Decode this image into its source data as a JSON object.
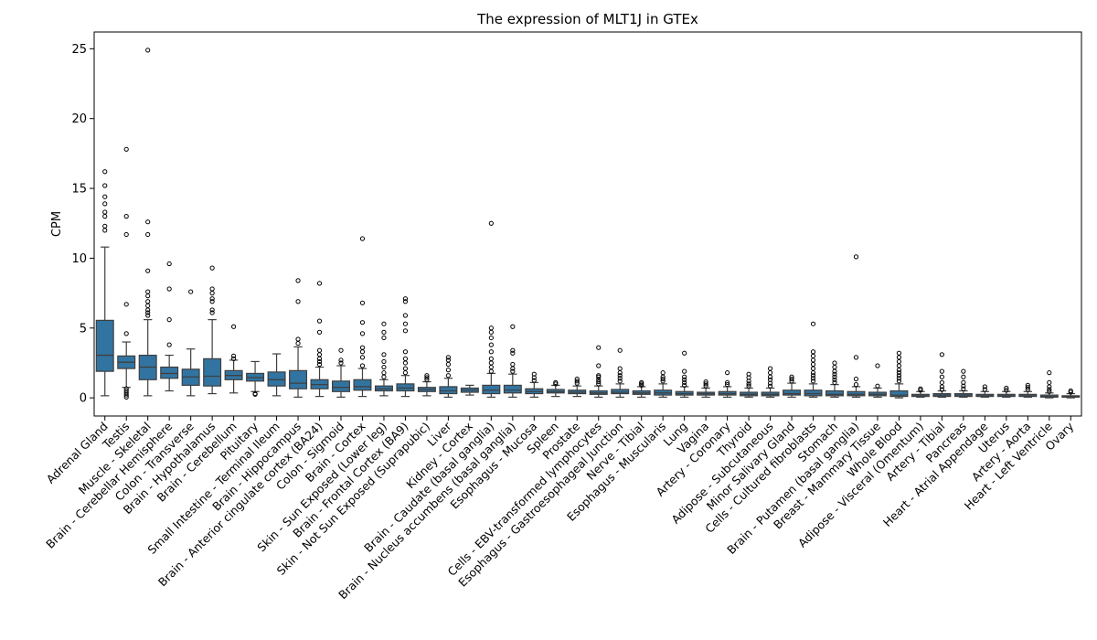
{
  "chart_data": {
    "type": "box",
    "title": "The expression of MLT1J in GTEx",
    "xlabel": "",
    "ylabel": "CPM",
    "ylim": [
      -1.3,
      26.2
    ],
    "yticks": [
      0,
      5,
      10,
      15,
      20,
      25
    ],
    "color": "#3274a1",
    "series": [
      {
        "category": "Adrenal Gland",
        "whisker_low": 0.15,
        "q1": 1.9,
        "median": 3.05,
        "q3": 5.55,
        "whisker_high": 10.8,
        "outliers": [
          12.0,
          12.3,
          13.0,
          13.3,
          13.9,
          14.4,
          15.2,
          16.2
        ]
      },
      {
        "category": "Testis",
        "whisker_low": 0.75,
        "q1": 2.1,
        "median": 2.55,
        "q3": 3.0,
        "whisker_high": 4.0,
        "outliers": [
          0.05,
          0.2,
          0.35,
          0.5,
          0.65,
          4.6,
          6.7,
          11.7,
          13.0,
          17.8
        ]
      },
      {
        "category": "Muscle - Skeletal",
        "whisker_low": 0.15,
        "q1": 1.3,
        "median": 2.2,
        "q3": 3.05,
        "whisker_high": 5.6,
        "outliers": [
          5.9,
          6.1,
          6.3,
          6.6,
          6.9,
          7.3,
          7.6,
          9.1,
          11.7,
          12.6,
          24.9
        ]
      },
      {
        "category": "Brain - Cerebellar Hemisphere",
        "whisker_low": 0.5,
        "q1": 1.4,
        "median": 1.75,
        "q3": 2.2,
        "whisker_high": 3.05,
        "outliers": [
          3.8,
          5.6,
          7.8,
          9.6
        ]
      },
      {
        "category": "Colon - Transverse",
        "whisker_low": 0.15,
        "q1": 0.9,
        "median": 1.5,
        "q3": 2.05,
        "whisker_high": 3.5,
        "outliers": [
          7.6
        ]
      },
      {
        "category": "Brain - Hypothalamus",
        "whisker_low": 0.3,
        "q1": 0.85,
        "median": 1.55,
        "q3": 2.8,
        "whisker_high": 5.6,
        "outliers": [
          6.1,
          6.3,
          6.9,
          7.1,
          7.5,
          7.8,
          9.3
        ]
      },
      {
        "category": "Brain - Cerebellum",
        "whisker_low": 0.35,
        "q1": 1.3,
        "median": 1.6,
        "q3": 1.95,
        "whisker_high": 2.7,
        "outliers": [
          2.8,
          3.0,
          5.1
        ]
      },
      {
        "category": "Pituitary",
        "whisker_low": 0.45,
        "q1": 1.2,
        "median": 1.45,
        "q3": 1.75,
        "whisker_high": 2.6,
        "outliers": [
          0.25,
          0.3
        ]
      },
      {
        "category": "Small Intestine - Terminal Ileum",
        "whisker_low": 0.15,
        "q1": 0.85,
        "median": 1.3,
        "q3": 1.85,
        "whisker_high": 3.15,
        "outliers": []
      },
      {
        "category": "Brain - Hippocampus",
        "whisker_low": 0.05,
        "q1": 0.65,
        "median": 1.05,
        "q3": 1.95,
        "whisker_high": 3.65,
        "outliers": [
          3.9,
          4.2,
          6.9,
          8.4
        ]
      },
      {
        "category": "Brain - Anterior cingulate cortex (BA24)",
        "whisker_low": 0.1,
        "q1": 0.65,
        "median": 0.95,
        "q3": 1.3,
        "whisker_high": 2.2,
        "outliers": [
          2.4,
          2.6,
          2.8,
          3.1,
          3.4,
          4.7,
          5.5,
          8.2
        ]
      },
      {
        "category": "Colon - Sigmoid",
        "whisker_low": 0.05,
        "q1": 0.45,
        "median": 0.75,
        "q3": 1.2,
        "whisker_high": 2.3,
        "outliers": [
          2.5,
          2.7,
          3.4
        ]
      },
      {
        "category": "Brain - Cortex",
        "whisker_low": 0.1,
        "q1": 0.55,
        "median": 0.8,
        "q3": 1.3,
        "whisker_high": 2.1,
        "outliers": [
          2.3,
          2.9,
          3.3,
          3.6,
          4.6,
          5.4,
          6.8,
          11.4
        ]
      },
      {
        "category": "Skin - Sun Exposed (Lower leg)",
        "whisker_low": 0.15,
        "q1": 0.5,
        "median": 0.65,
        "q3": 0.85,
        "whisker_high": 1.3,
        "outliers": [
          1.5,
          1.8,
          2.2,
          2.6,
          3.1,
          4.3,
          4.7,
          5.3
        ]
      },
      {
        "category": "Brain - Frontal Cortex (BA9)",
        "whisker_low": 0.1,
        "q1": 0.5,
        "median": 0.7,
        "q3": 1.0,
        "whisker_high": 1.6,
        "outliers": [
          1.8,
          2.1,
          2.5,
          2.8,
          3.3,
          4.8,
          5.3,
          5.9,
          6.9,
          7.1
        ]
      },
      {
        "category": "Skin - Not Sun Exposed (Suprapubic)",
        "whisker_low": 0.15,
        "q1": 0.45,
        "median": 0.6,
        "q3": 0.75,
        "whisker_high": 1.15,
        "outliers": [
          1.3,
          1.45,
          1.6
        ]
      },
      {
        "category": "Liver",
        "whisker_low": 0.05,
        "q1": 0.3,
        "median": 0.5,
        "q3": 0.8,
        "whisker_high": 1.4,
        "outliers": [
          1.6,
          2.0,
          2.4,
          2.7,
          2.9
        ]
      },
      {
        "category": "Kidney - Cortex",
        "whisker_low": 0.2,
        "q1": 0.4,
        "median": 0.55,
        "q3": 0.7,
        "whisker_high": 0.9,
        "outliers": []
      },
      {
        "category": "Brain - Caudate (basal ganglia)",
        "whisker_low": 0.05,
        "q1": 0.3,
        "median": 0.55,
        "q3": 0.9,
        "whisker_high": 1.75,
        "outliers": [
          1.9,
          2.2,
          2.5,
          2.8,
          3.3,
          3.8,
          4.3,
          4.7,
          5.0,
          12.5
        ]
      },
      {
        "category": "Brain - Nucleus accumbens (basal ganglia)",
        "whisker_low": 0.05,
        "q1": 0.35,
        "median": 0.55,
        "q3": 0.9,
        "whisker_high": 1.7,
        "outliers": [
          1.9,
          2.1,
          2.4,
          3.2,
          3.4,
          5.1
        ]
      },
      {
        "category": "Esophagus - Mucosa",
        "whisker_low": 0.05,
        "q1": 0.3,
        "median": 0.45,
        "q3": 0.65,
        "whisker_high": 1.1,
        "outliers": [
          1.25,
          1.45,
          1.7
        ]
      },
      {
        "category": "Spleen",
        "whisker_low": 0.1,
        "q1": 0.35,
        "median": 0.45,
        "q3": 0.6,
        "whisker_high": 0.9,
        "outliers": [
          1.0,
          1.1
        ]
      },
      {
        "category": "Prostate",
        "whisker_low": 0.1,
        "q1": 0.3,
        "median": 0.4,
        "q3": 0.55,
        "whisker_high": 0.85,
        "outliers": [
          1.05,
          1.2,
          1.35
        ]
      },
      {
        "category": "Cells - EBV-transformed lymphocytes",
        "whisker_low": 0.05,
        "q1": 0.25,
        "median": 0.35,
        "q3": 0.5,
        "whisker_high": 0.85,
        "outliers": [
          1.0,
          1.15,
          1.3,
          1.5,
          1.6,
          2.3,
          3.6
        ]
      },
      {
        "category": "Esophagus - Gastroesophageal Junction",
        "whisker_low": 0.05,
        "q1": 0.3,
        "median": 0.4,
        "q3": 0.6,
        "whisker_high": 1.0,
        "outliers": [
          1.2,
          1.4,
          1.6,
          1.8,
          2.1,
          3.4
        ]
      },
      {
        "category": "Nerve - Tibial",
        "whisker_low": 0.05,
        "q1": 0.25,
        "median": 0.35,
        "q3": 0.5,
        "whisker_high": 0.8,
        "outliers": [
          0.9,
          1.0,
          1.1
        ]
      },
      {
        "category": "Esophagus - Muscularis",
        "whisker_low": 0.05,
        "q1": 0.2,
        "median": 0.35,
        "q3": 0.55,
        "whisker_high": 1.0,
        "outliers": [
          1.2,
          1.35,
          1.5,
          1.8
        ]
      },
      {
        "category": "Lung",
        "whisker_low": 0.05,
        "q1": 0.2,
        "median": 0.3,
        "q3": 0.45,
        "whisker_high": 0.8,
        "outliers": [
          0.9,
          1.1,
          1.3,
          1.5,
          1.9,
          3.2
        ]
      },
      {
        "category": "Vagina",
        "whisker_low": 0.05,
        "q1": 0.2,
        "median": 0.3,
        "q3": 0.4,
        "whisker_high": 0.7,
        "outliers": [
          0.85,
          1.0,
          1.15
        ]
      },
      {
        "category": "Artery - Coronary",
        "whisker_low": 0.05,
        "q1": 0.2,
        "median": 0.3,
        "q3": 0.45,
        "whisker_high": 0.8,
        "outliers": [
          0.95,
          1.1,
          1.8
        ]
      },
      {
        "category": "Thyroid",
        "whisker_low": 0.05,
        "q1": 0.15,
        "median": 0.25,
        "q3": 0.4,
        "whisker_high": 0.7,
        "outliers": [
          0.85,
          1.0,
          1.2,
          1.45,
          1.7
        ]
      },
      {
        "category": "Adipose - Subcutaneous",
        "whisker_low": 0.05,
        "q1": 0.15,
        "median": 0.25,
        "q3": 0.4,
        "whisker_high": 0.7,
        "outliers": [
          0.85,
          1.05,
          1.3,
          1.5,
          1.8,
          2.1
        ]
      },
      {
        "category": "Minor Salivary Gland",
        "whisker_low": 0.05,
        "q1": 0.2,
        "median": 0.3,
        "q3": 0.55,
        "whisker_high": 1.05,
        "outliers": [
          1.2,
          1.35,
          1.5
        ]
      },
      {
        "category": "Cells - Cultured fibroblasts",
        "whisker_low": 0.05,
        "q1": 0.15,
        "median": 0.3,
        "q3": 0.55,
        "whisker_high": 1.0,
        "outliers": [
          1.2,
          1.4,
          1.6,
          1.8,
          2.1,
          2.4,
          2.7,
          3.0,
          3.3,
          5.3
        ]
      },
      {
        "category": "Stomach",
        "whisker_low": 0.05,
        "q1": 0.15,
        "median": 0.25,
        "q3": 0.5,
        "whisker_high": 0.95,
        "outliers": [
          1.1,
          1.3,
          1.5,
          1.7,
          1.9,
          2.2,
          2.5
        ]
      },
      {
        "category": "Brain - Putamen (basal ganglia)",
        "whisker_low": 0.05,
        "q1": 0.15,
        "median": 0.25,
        "q3": 0.45,
        "whisker_high": 0.8,
        "outliers": [
          0.95,
          1.35,
          2.9,
          10.1
        ]
      },
      {
        "category": "Breast - Mammary Tissue",
        "whisker_low": 0.05,
        "q1": 0.15,
        "median": 0.25,
        "q3": 0.4,
        "whisker_high": 0.7,
        "outliers": [
          0.85,
          2.3
        ]
      },
      {
        "category": "Whole Blood",
        "whisker_low": 0.0,
        "q1": 0.1,
        "median": 0.2,
        "q3": 0.5,
        "whisker_high": 1.0,
        "outliers": [
          1.2,
          1.4,
          1.6,
          1.8,
          2.0,
          2.3,
          2.6,
          2.9,
          3.2
        ]
      },
      {
        "category": "Adipose - Visceral (Omentum)",
        "whisker_low": 0.05,
        "q1": 0.1,
        "median": 0.15,
        "q3": 0.25,
        "whisker_high": 0.45,
        "outliers": [
          0.55,
          0.65
        ]
      },
      {
        "category": "Artery - Tibial",
        "whisker_low": 0.05,
        "q1": 0.1,
        "median": 0.2,
        "q3": 0.3,
        "whisker_high": 0.5,
        "outliers": [
          0.6,
          0.8,
          1.1,
          1.5,
          1.9,
          3.1
        ]
      },
      {
        "category": "Pancreas",
        "whisker_low": 0.05,
        "q1": 0.1,
        "median": 0.2,
        "q3": 0.3,
        "whisker_high": 0.5,
        "outliers": [
          0.65,
          0.85,
          1.1,
          1.5,
          1.9
        ]
      },
      {
        "category": "Heart - Atrial Appendage",
        "whisker_low": 0.05,
        "q1": 0.1,
        "median": 0.15,
        "q3": 0.25,
        "whisker_high": 0.45,
        "outliers": [
          0.6,
          0.8
        ]
      },
      {
        "category": "Uterus",
        "whisker_low": 0.05,
        "q1": 0.1,
        "median": 0.15,
        "q3": 0.25,
        "whisker_high": 0.45,
        "outliers": [
          0.55,
          0.7
        ]
      },
      {
        "category": "Artery - Aorta",
        "whisker_low": 0.05,
        "q1": 0.1,
        "median": 0.15,
        "q3": 0.25,
        "whisker_high": 0.45,
        "outliers": [
          0.6,
          0.75,
          0.9
        ]
      },
      {
        "category": "Heart - Left Ventricle",
        "whisker_low": 0.0,
        "q1": 0.05,
        "median": 0.1,
        "q3": 0.2,
        "whisker_high": 0.35,
        "outliers": [
          0.45,
          0.6,
          0.8,
          1.1,
          1.8
        ]
      },
      {
        "category": "Ovary",
        "whisker_low": 0.0,
        "q1": 0.05,
        "median": 0.1,
        "q3": 0.15,
        "whisker_high": 0.3,
        "outliers": [
          0.4,
          0.5
        ]
      }
    ]
  }
}
